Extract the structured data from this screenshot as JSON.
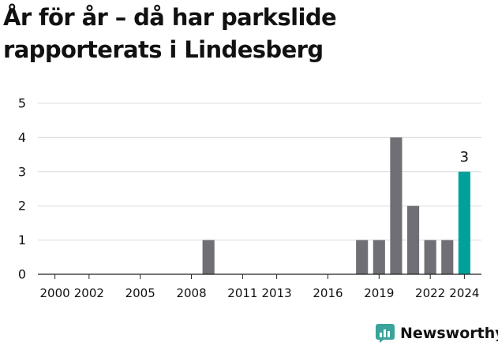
{
  "colors": {
    "bar": "#6f6f75",
    "highlight": "#00a19a",
    "grid": "#dcdcdc",
    "axis": "#222222",
    "brand": "#3aa39a"
  },
  "brand": {
    "name": "Newsworthy",
    "icon": "newsworthy-logo-icon"
  },
  "chart_data": {
    "type": "bar",
    "title": "År för år – då har parkslide rapporterats i Lindesberg",
    "xlabel": "",
    "ylabel": "",
    "ylim": [
      0,
      5
    ],
    "yticks": [
      0,
      1,
      2,
      3,
      4,
      5
    ],
    "xlim": [
      1999,
      2025
    ],
    "xticks": [
      2000,
      2002,
      2005,
      2008,
      2011,
      2013,
      2016,
      2019,
      2022,
      2024
    ],
    "grid": true,
    "legend": "none",
    "x": [
      2009,
      2018,
      2019,
      2020,
      2021,
      2022,
      2023,
      2024
    ],
    "values": [
      1,
      1,
      1,
      4,
      2,
      1,
      1,
      3
    ],
    "highlight_x": 2024,
    "highlight_label": "3"
  }
}
